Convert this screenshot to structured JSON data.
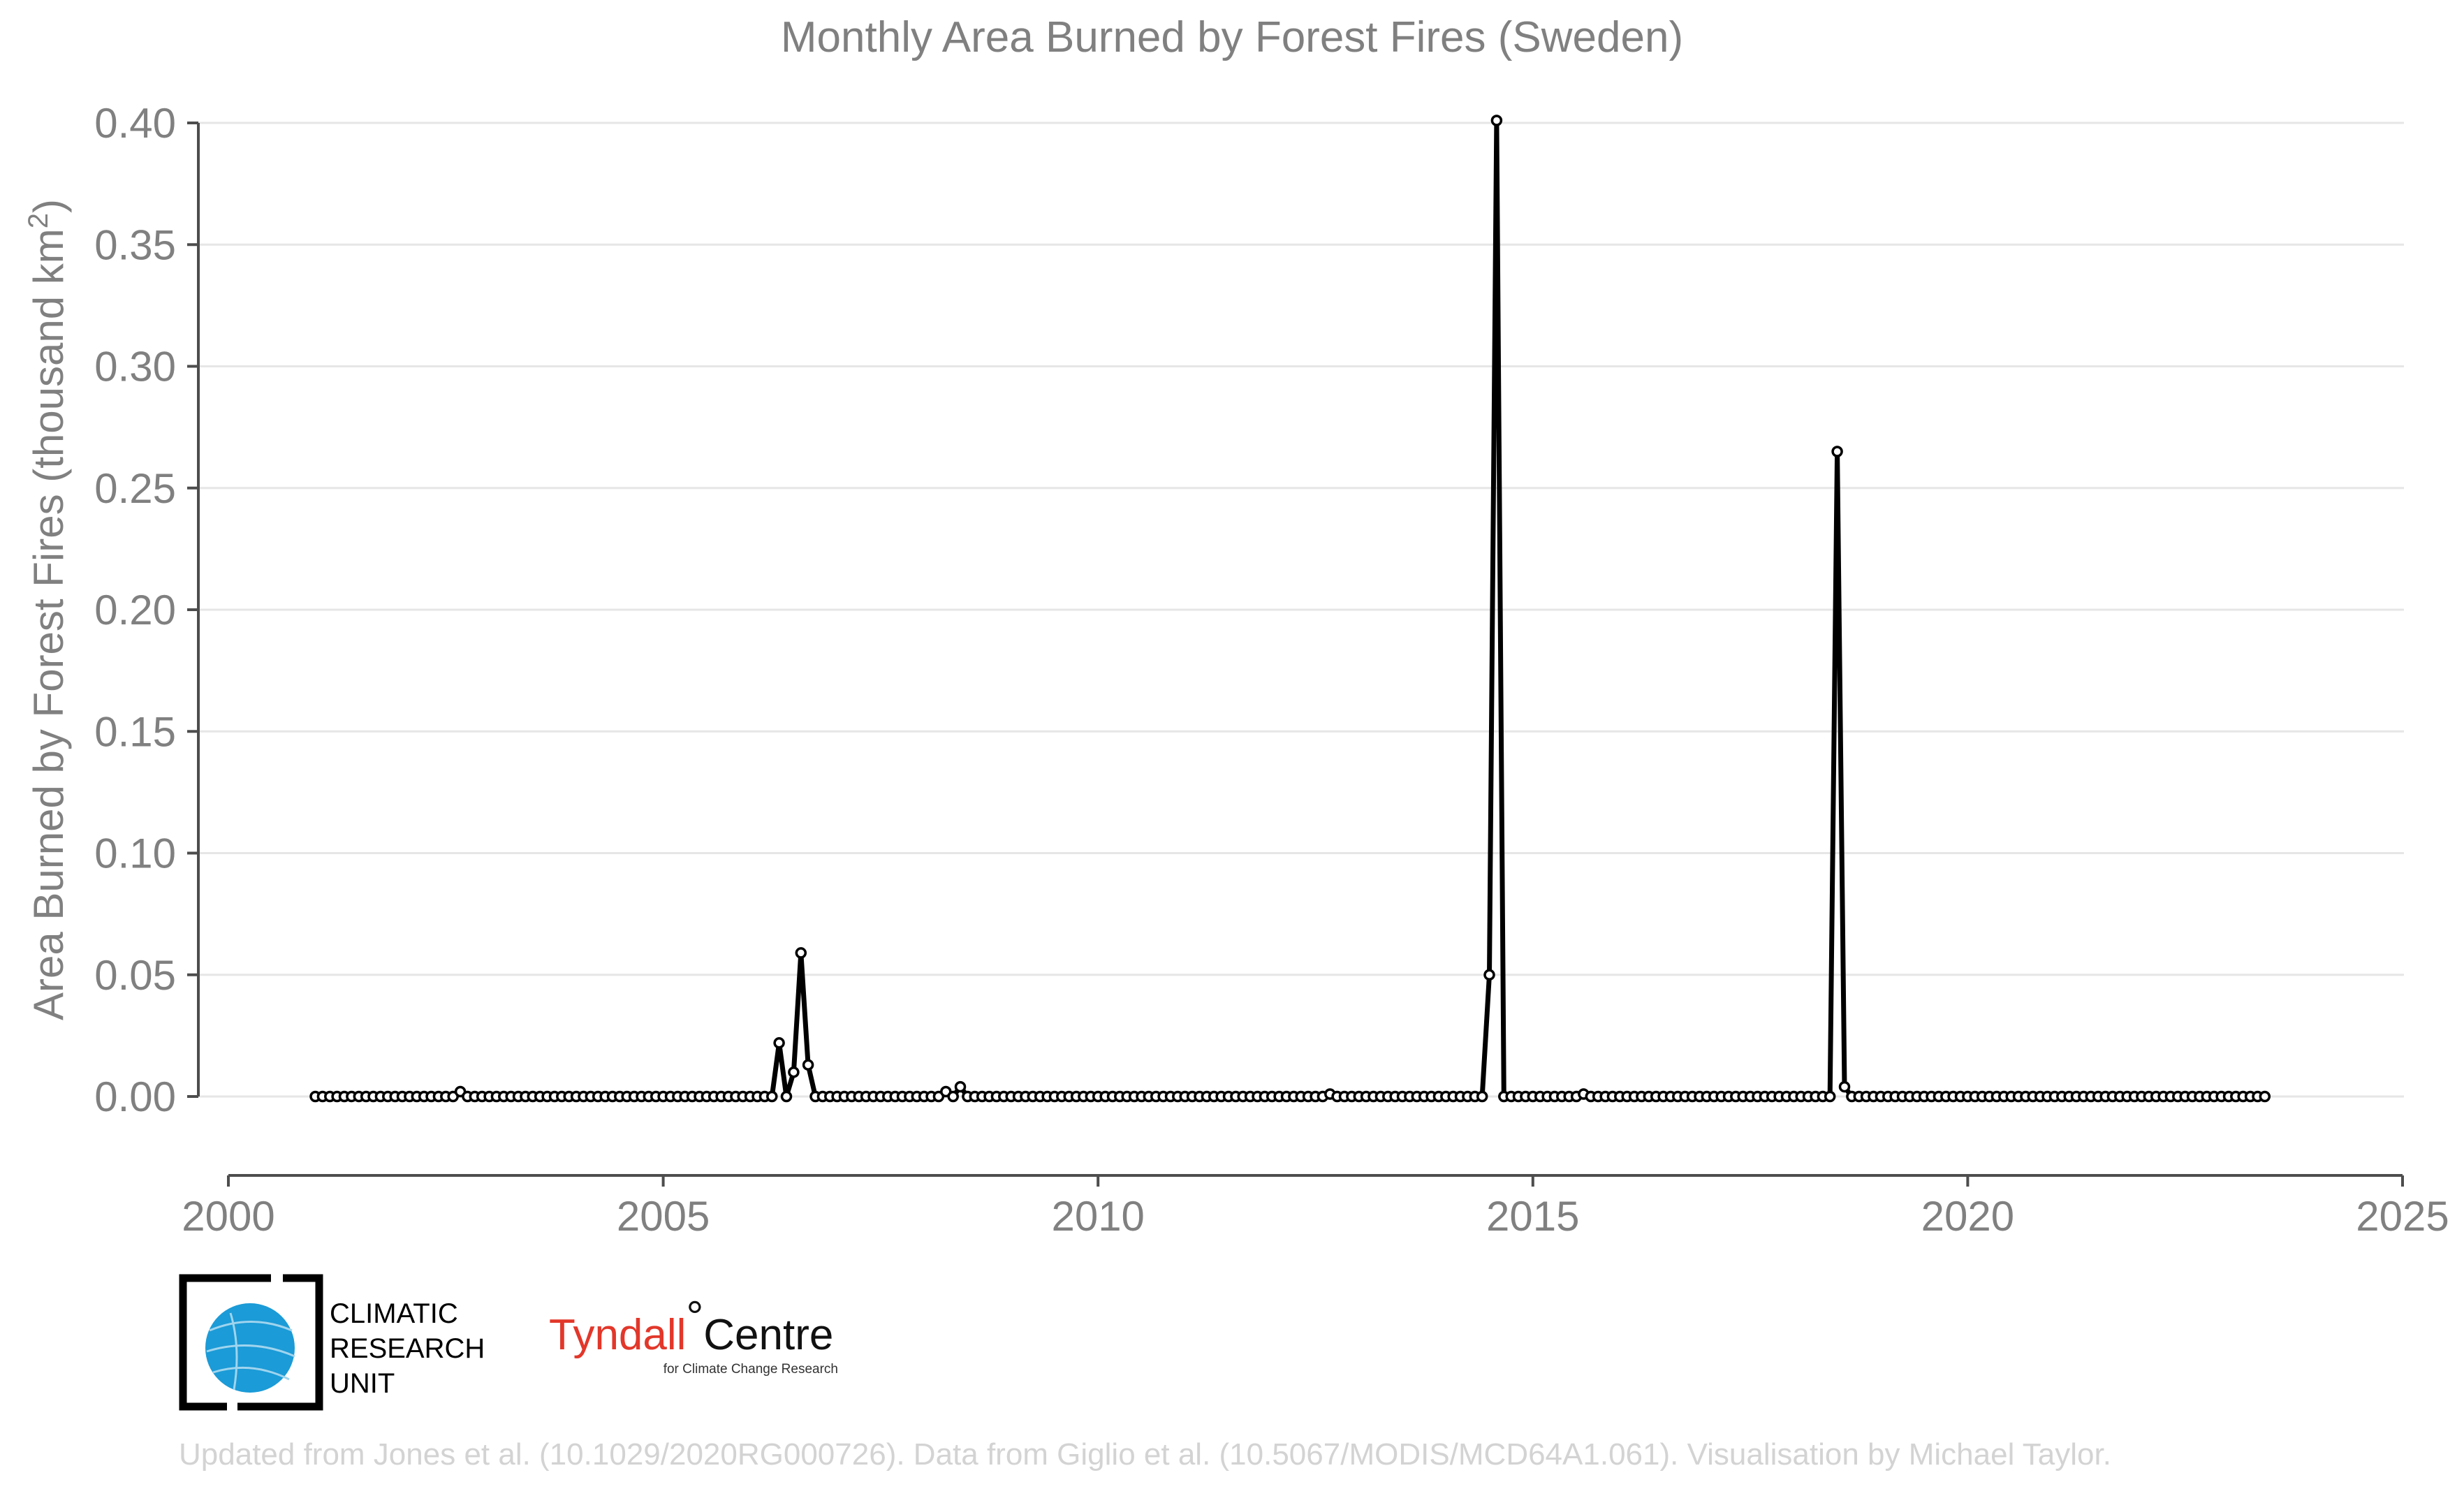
{
  "chart_data": {
    "type": "line",
    "title": "Monthly Area Burned by Forest Fires (Sweden)",
    "xlabel": "",
    "ylabel": "Area Burned by Forest Fires (thousand km",
    "ylabel_superscript": "2",
    "ylabel_suffix": ")",
    "xlim": [
      2000,
      2025
    ],
    "ylim": [
      -0.03,
      0.4
    ],
    "x_ticks": [
      "2000",
      "2005",
      "2010",
      "2015",
      "2020",
      "2025"
    ],
    "y_ticks": [
      "0.00",
      "0.05",
      "0.10",
      "0.15",
      "0.20",
      "0.25",
      "0.30",
      "0.35",
      "0.40"
    ],
    "grid": "horizontal",
    "start": "2001-01",
    "end": "2023-06",
    "x_unit": "month",
    "values_default": 0,
    "nonzero": [
      {
        "x": "2002-09",
        "y": 0.002
      },
      {
        "x": "2006-05",
        "y": 0.022
      },
      {
        "x": "2006-06",
        "y": 0.0
      },
      {
        "x": "2006-07",
        "y": 0.01
      },
      {
        "x": "2006-08",
        "y": 0.059
      },
      {
        "x": "2006-09",
        "y": 0.013
      },
      {
        "x": "2008-04",
        "y": 0.002
      },
      {
        "x": "2008-06",
        "y": 0.004
      },
      {
        "x": "2012-09",
        "y": 0.001
      },
      {
        "x": "2014-07",
        "y": 0.05
      },
      {
        "x": "2014-08",
        "y": 0.401
      },
      {
        "x": "2015-08",
        "y": 0.001
      },
      {
        "x": "2018-07",
        "y": 0.265
      },
      {
        "x": "2018-08",
        "y": 0.004
      }
    ]
  },
  "logos": {
    "cru": [
      "CLIMATIC",
      "RESEARCH",
      "UNIT"
    ],
    "tyndall_main": "Tyndall",
    "tyndall_degree": "°",
    "tyndall_centre": "Centre",
    "tyndall_sub": "for Climate Change Research"
  },
  "footer": "Updated from Jones et al. (10.1029/2020RG000726). Data from Giglio et al. (10.5067/MODIS/MCD64A1.061). Visualisation by Michael Taylor.",
  "colors": {
    "series": "#000000",
    "text": "#808080",
    "footer": "#d3d3d3",
    "tyndall_red": "#e2372a",
    "cru_globe": "#1b9bd7"
  }
}
